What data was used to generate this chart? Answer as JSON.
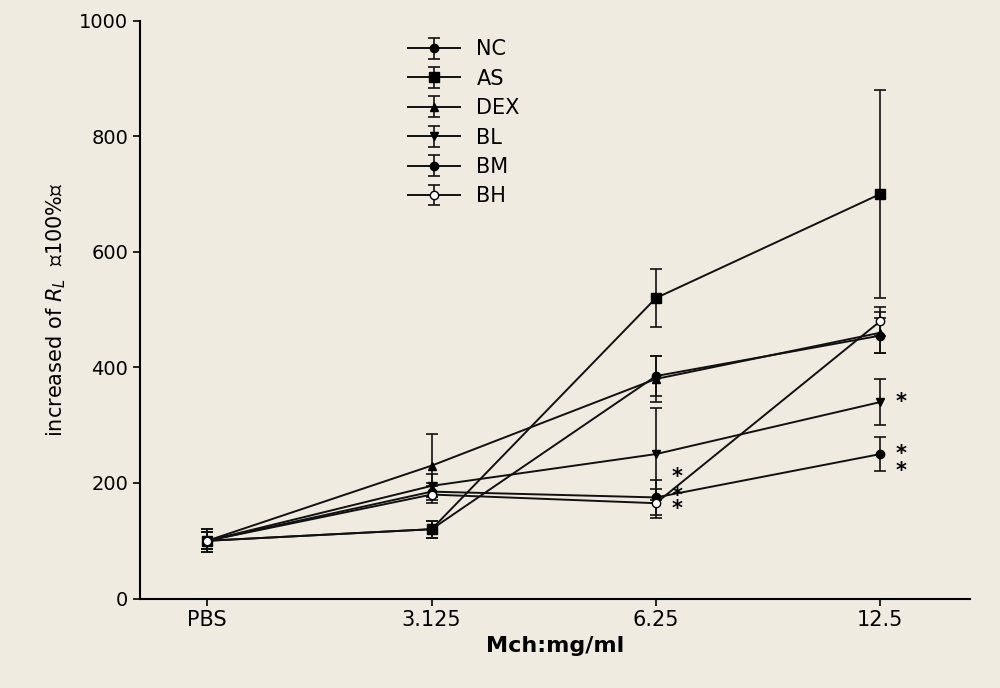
{
  "title": "",
  "xlabel": "Mch:mg/ml",
  "background_color": "#f0ebe0",
  "x_positions": [
    0,
    1,
    2,
    3
  ],
  "x_labels": [
    "PBS",
    "3.125",
    "6.25",
    "12.5"
  ],
  "series": [
    {
      "name": "NC",
      "marker": "o",
      "marker_size": 6,
      "fillstyle": "full",
      "y": [
        100,
        120,
        385,
        455
      ],
      "yerr": [
        20,
        15,
        35,
        30
      ],
      "color": "#111111"
    },
    {
      "name": "AS",
      "marker": "s",
      "marker_size": 7,
      "fillstyle": "full",
      "y": [
        100,
        120,
        520,
        700
      ],
      "yerr": [
        20,
        15,
        50,
        180
      ],
      "color": "#111111"
    },
    {
      "name": "DEX",
      "marker": "^",
      "marker_size": 6,
      "fillstyle": "full",
      "y": [
        100,
        230,
        380,
        460
      ],
      "yerr": [
        15,
        55,
        40,
        35
      ],
      "color": "#111111"
    },
    {
      "name": "BL",
      "marker": "v",
      "marker_size": 6,
      "fillstyle": "full",
      "y": [
        100,
        195,
        250,
        340
      ],
      "yerr": [
        15,
        20,
        80,
        40
      ],
      "color": "#111111"
    },
    {
      "name": "BM",
      "marker": "o",
      "marker_size": 6,
      "fillstyle": "full",
      "y": [
        100,
        185,
        175,
        250
      ],
      "yerr": [
        15,
        15,
        30,
        30
      ],
      "color": "#111111"
    },
    {
      "name": "BH",
      "marker": "o",
      "marker_size": 6,
      "fillstyle": "none",
      "y": [
        100,
        180,
        165,
        480
      ],
      "yerr": [
        15,
        15,
        25,
        25
      ],
      "color": "#111111"
    }
  ],
  "ylim": [
    0,
    1000
  ],
  "yticks": [
    0,
    200,
    400,
    600,
    800,
    1000
  ],
  "asterisks_6_25": [
    {
      "y": 210,
      "label": "*"
    },
    {
      "y": 178,
      "label": "*"
    },
    {
      "y": 155,
      "label": "*"
    }
  ],
  "asterisks_12_5": [
    {
      "y": 340,
      "label": "*"
    },
    {
      "y": 250,
      "label": "*"
    },
    {
      "y": 220,
      "label": "*"
    }
  ]
}
